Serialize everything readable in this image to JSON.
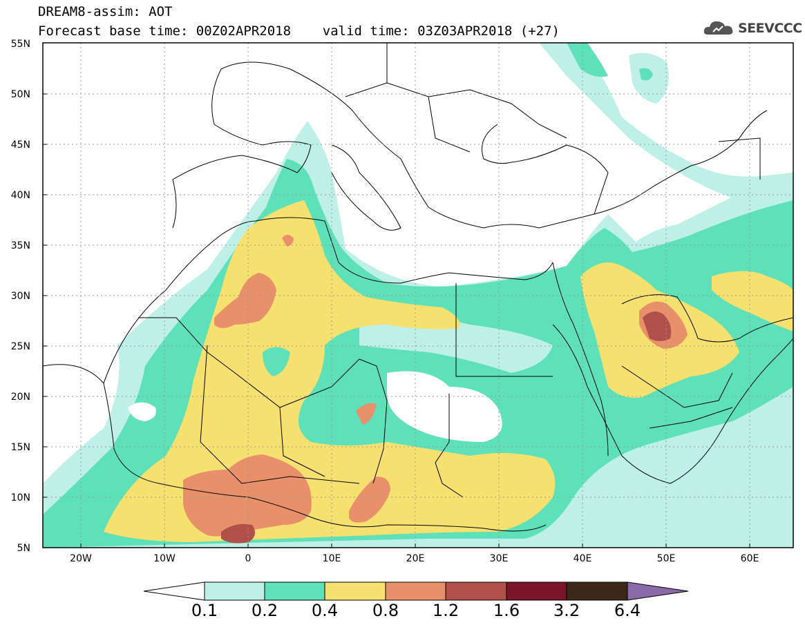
{
  "header": {
    "line1": "DREAM8-assim: AOT",
    "line2": "Forecast base time: 00Z02APR2018    valid time: 03Z03APR2018 (+27)"
  },
  "logo": {
    "text": "SEEVCCC",
    "icon": "cloud-icon"
  },
  "axes": {
    "lat_labels": [
      "55N",
      "50N",
      "45N",
      "40N",
      "35N",
      "30N",
      "25N",
      "20N",
      "15N",
      "10N",
      "5N"
    ],
    "lon_labels": [
      "20W",
      "10W",
      "0",
      "10E",
      "20E",
      "30E",
      "40E",
      "50E",
      "60E"
    ]
  },
  "colorbar": {
    "labels": [
      "0.1",
      "0.2",
      "0.4",
      "0.8",
      "1.2",
      "1.6",
      "3.2",
      "6.4"
    ],
    "colors": [
      "#ffffff",
      "#bff0e8",
      "#5ee0b8",
      "#f5e070",
      "#e8906a",
      "#b05048",
      "#7a1428",
      "#3c2818",
      "#8a6aa8"
    ]
  },
  "colors": {
    "c01": "#bff0e8",
    "c02": "#5ee0b8",
    "c04": "#f5e070",
    "c08": "#e8906a",
    "c12": "#b05048",
    "c16": "#7a1428"
  }
}
